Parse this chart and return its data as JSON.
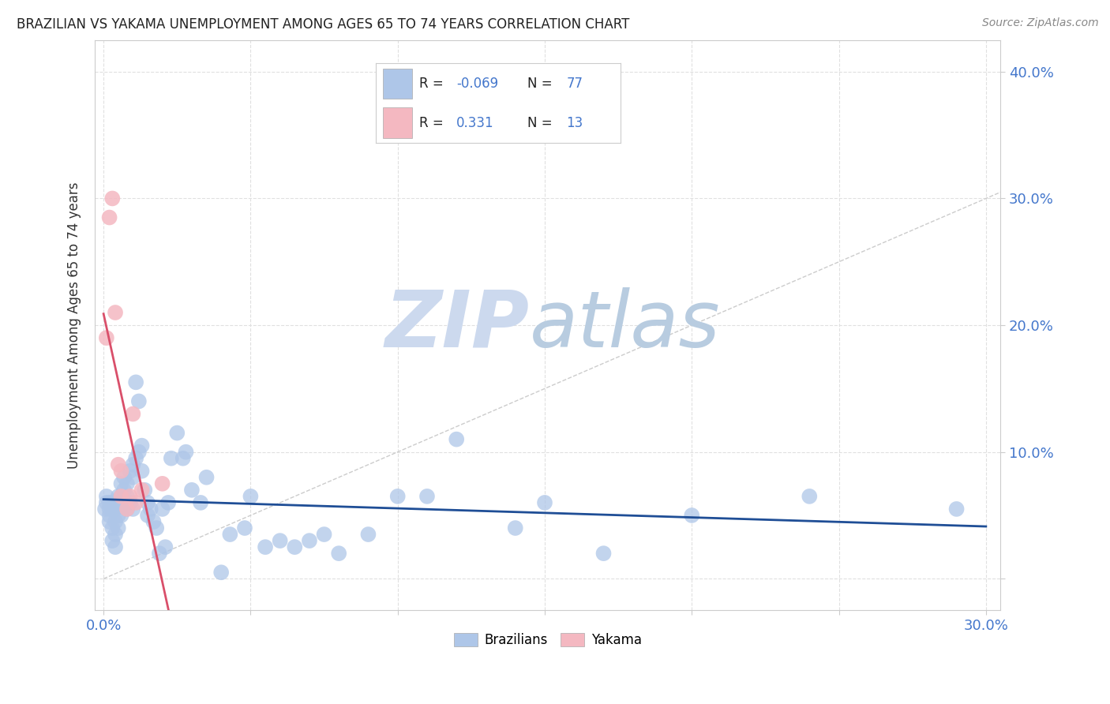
{
  "title": "BRAZILIAN VS YAKAMA UNEMPLOYMENT AMONG AGES 65 TO 74 YEARS CORRELATION CHART",
  "source": "Source: ZipAtlas.com",
  "ylabel": "Unemployment Among Ages 65 to 74 years",
  "xlim": [
    -0.003,
    0.305
  ],
  "ylim": [
    -0.025,
    0.425
  ],
  "xticks": [
    0.0,
    0.05,
    0.1,
    0.15,
    0.2,
    0.25,
    0.3
  ],
  "yticks": [
    0.0,
    0.1,
    0.2,
    0.3,
    0.4
  ],
  "brazilian_R": -0.069,
  "brazilian_N": 77,
  "yakama_R": 0.331,
  "yakama_N": 13,
  "blue_color": "#aec6e8",
  "pink_color": "#f4b8c1",
  "line_blue": "#1f4e96",
  "line_pink": "#d94f6a",
  "diagonal_color": "#cccccc",
  "background_color": "#ffffff",
  "tick_color": "#4477cc",
  "text_color": "#333333",
  "grid_color": "#e0e0e0",
  "brazilian_x": [
    0.0005,
    0.001,
    0.001,
    0.002,
    0.002,
    0.002,
    0.002,
    0.003,
    0.003,
    0.003,
    0.003,
    0.004,
    0.004,
    0.004,
    0.004,
    0.004,
    0.005,
    0.005,
    0.005,
    0.005,
    0.006,
    0.006,
    0.006,
    0.007,
    0.007,
    0.007,
    0.008,
    0.008,
    0.008,
    0.009,
    0.009,
    0.01,
    0.01,
    0.01,
    0.011,
    0.011,
    0.012,
    0.012,
    0.013,
    0.013,
    0.014,
    0.015,
    0.015,
    0.016,
    0.017,
    0.018,
    0.019,
    0.02,
    0.021,
    0.022,
    0.023,
    0.025,
    0.027,
    0.028,
    0.03,
    0.033,
    0.035,
    0.04,
    0.043,
    0.048,
    0.05,
    0.055,
    0.06,
    0.065,
    0.07,
    0.075,
    0.08,
    0.09,
    0.1,
    0.11,
    0.12,
    0.14,
    0.15,
    0.17,
    0.2,
    0.24,
    0.29
  ],
  "brazilian_y": [
    0.055,
    0.06,
    0.065,
    0.05,
    0.055,
    0.06,
    0.045,
    0.055,
    0.06,
    0.04,
    0.03,
    0.06,
    0.055,
    0.045,
    0.035,
    0.025,
    0.065,
    0.058,
    0.05,
    0.04,
    0.075,
    0.065,
    0.05,
    0.08,
    0.07,
    0.06,
    0.075,
    0.065,
    0.055,
    0.085,
    0.06,
    0.09,
    0.08,
    0.055,
    0.155,
    0.095,
    0.14,
    0.1,
    0.105,
    0.085,
    0.07,
    0.06,
    0.05,
    0.055,
    0.045,
    0.04,
    0.02,
    0.055,
    0.025,
    0.06,
    0.095,
    0.115,
    0.095,
    0.1,
    0.07,
    0.06,
    0.08,
    0.005,
    0.035,
    0.04,
    0.065,
    0.025,
    0.03,
    0.025,
    0.03,
    0.035,
    0.02,
    0.035,
    0.065,
    0.065,
    0.11,
    0.04,
    0.06,
    0.02,
    0.05,
    0.065,
    0.055
  ],
  "yakama_x": [
    0.001,
    0.002,
    0.003,
    0.004,
    0.005,
    0.006,
    0.006,
    0.008,
    0.009,
    0.01,
    0.011,
    0.013,
    0.02
  ],
  "yakama_y": [
    0.19,
    0.285,
    0.3,
    0.21,
    0.09,
    0.065,
    0.085,
    0.055,
    0.065,
    0.13,
    0.06,
    0.07,
    0.075
  ]
}
